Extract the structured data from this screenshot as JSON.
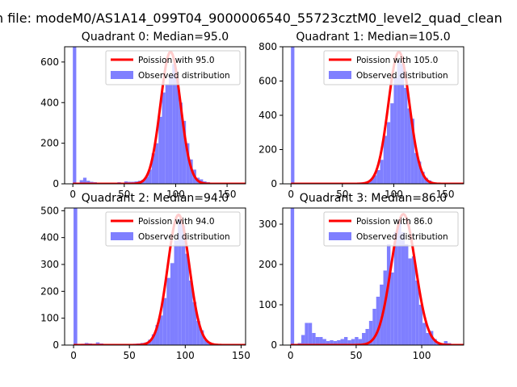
{
  "figure": {
    "suptitle": "n file: modeM0/AS1A14_099T04_9000006540_55723cztM0_level2_quad_clean"
  },
  "colors": {
    "bars": "#7f7fff",
    "poisson_line": "#ff0000",
    "axes": "#000000"
  },
  "chart_data": [
    {
      "type": "bar",
      "title": "Quadrant 0: Median=95.0",
      "legend": {
        "line": "Poission with 95.0",
        "bars": "Observed distribution",
        "placement": "top-right"
      },
      "xlim": [
        -8,
        168
      ],
      "ylim": [
        0,
        675
      ],
      "xticks": [
        0,
        50,
        100,
        150
      ],
      "yticks": [
        0,
        200,
        400,
        600
      ],
      "bin_width": 3.33,
      "poisson_mean": 95.0,
      "poisson_peak": 650,
      "bins_start": [
        0,
        3.33,
        6.67,
        10,
        13.33,
        16.67,
        20,
        23.33,
        26.67,
        30,
        33.33,
        36.67,
        40,
        43.33,
        46.67,
        50,
        53.33,
        56.67,
        60,
        63.33,
        66.67,
        70,
        73.33,
        76.67,
        80,
        83.33,
        86.67,
        90,
        93.33,
        96.67,
        100,
        103.33,
        106.67,
        110,
        113.33,
        116.67,
        120,
        123.33,
        126.67,
        130,
        133.33,
        136.67,
        140,
        143.33,
        146.67,
        150,
        153.33,
        156.67
      ],
      "counts": [
        2000,
        5,
        18,
        30,
        15,
        10,
        8,
        5,
        4,
        3,
        5,
        6,
        5,
        8,
        6,
        12,
        10,
        10,
        12,
        15,
        20,
        35,
        70,
        150,
        200,
        330,
        450,
        490,
        535,
        590,
        520,
        400,
        310,
        200,
        120,
        70,
        30,
        22,
        12,
        8,
        5,
        3,
        2,
        1,
        0,
        0,
        0,
        0
      ]
    },
    {
      "type": "bar",
      "title": "Quadrant 1: Median=105.0",
      "legend": {
        "line": "Poission with 105.0",
        "bars": "Observed distribution",
        "placement": "top-right"
      },
      "xlim": [
        -8,
        168
      ],
      "ylim": [
        0,
        800
      ],
      "xticks": [
        0,
        50,
        100,
        150
      ],
      "yticks": [
        0,
        200,
        400,
        600,
        800
      ],
      "bin_width": 3.33,
      "poisson_mean": 105.0,
      "poisson_peak": 770,
      "bins_start": [
        0,
        3.33,
        6.67,
        10,
        13.33,
        16.67,
        20,
        23.33,
        26.67,
        30,
        33.33,
        36.67,
        40,
        43.33,
        46.67,
        50,
        53.33,
        56.67,
        60,
        63.33,
        66.67,
        70,
        73.33,
        76.67,
        80,
        83.33,
        86.67,
        90,
        93.33,
        96.67,
        100,
        103.33,
        106.67,
        110,
        113.33,
        116.67,
        120,
        123.33,
        126.67,
        130,
        133.33,
        136.67,
        140,
        143.33,
        146.67,
        150,
        153.33,
        156.67
      ],
      "counts": [
        2000,
        0,
        2,
        2,
        1,
        1,
        1,
        0,
        1,
        0,
        1,
        1,
        1,
        2,
        2,
        3,
        4,
        4,
        5,
        6,
        8,
        10,
        15,
        25,
        50,
        80,
        140,
        280,
        360,
        470,
        620,
        720,
        700,
        560,
        440,
        380,
        180,
        130,
        70,
        35,
        20,
        10,
        5,
        3,
        2,
        1,
        0,
        0
      ]
    },
    {
      "type": "bar",
      "title": "Quadrant 2: Median=94.0",
      "legend": {
        "line": "Poission with 94.0",
        "bars": "Observed distribution",
        "placement": "top-right"
      },
      "xlim": [
        -8,
        154
      ],
      "ylim": [
        0,
        510
      ],
      "xticks": [
        0,
        50,
        100,
        150
      ],
      "yticks": [
        0,
        100,
        200,
        300,
        400,
        500
      ],
      "bin_width": 3.33,
      "poisson_mean": 94.0,
      "poisson_peak": 485,
      "bins_start": [
        0,
        3.33,
        6.67,
        10,
        13.33,
        16.67,
        20,
        23.33,
        26.67,
        30,
        33.33,
        36.67,
        40,
        43.33,
        46.67,
        50,
        53.33,
        56.67,
        60,
        63.33,
        66.67,
        70,
        73.33,
        76.67,
        80,
        83.33,
        86.67,
        90,
        93.33,
        96.67,
        100,
        103.33,
        106.67,
        110,
        113.33,
        116.67,
        120,
        123.33,
        126.67,
        130,
        133.33,
        136.67,
        140,
        143.33
      ],
      "counts": [
        2000,
        3,
        5,
        8,
        6,
        5,
        10,
        6,
        4,
        3,
        3,
        2,
        2,
        3,
        2,
        4,
        5,
        6,
        8,
        10,
        20,
        40,
        75,
        110,
        175,
        250,
        305,
        390,
        470,
        445,
        340,
        240,
        160,
        90,
        55,
        20,
        10,
        5,
        3,
        2,
        1,
        0,
        0,
        0
      ]
    },
    {
      "type": "bar",
      "title": "Quadrant 3: Median=86.0",
      "legend": {
        "line": "Poission with 86.0",
        "bars": "Observed distribution",
        "placement": "top-right"
      },
      "xlim": [
        -6,
        132
      ],
      "ylim": [
        0,
        340
      ],
      "xticks": [
        0,
        50,
        100
      ],
      "yticks": [
        0,
        100,
        200,
        300
      ],
      "bin_width": 2.72,
      "poisson_mean": 86.0,
      "poisson_peak": 325,
      "bins_start": [
        0,
        2.72,
        5.44,
        8.16,
        10.88,
        13.6,
        16.32,
        19.04,
        21.76,
        24.48,
        27.2,
        29.92,
        32.64,
        35.36,
        38.08,
        40.8,
        43.52,
        46.24,
        48.96,
        51.68,
        54.4,
        57.12,
        59.84,
        62.56,
        65.28,
        68,
        70.72,
        73.44,
        76.16,
        78.88,
        81.6,
        84.32,
        87.04,
        89.76,
        92.48,
        95.2,
        97.92,
        100.64,
        103.36,
        106.08,
        108.8,
        111.52,
        114.24,
        116.96,
        119.68
      ],
      "counts": [
        2000,
        2,
        5,
        25,
        55,
        55,
        30,
        20,
        20,
        15,
        10,
        12,
        10,
        12,
        15,
        20,
        12,
        15,
        20,
        15,
        30,
        40,
        60,
        90,
        120,
        150,
        185,
        250,
        180,
        280,
        310,
        280,
        250,
        215,
        220,
        160,
        100,
        55,
        30,
        35,
        15,
        5,
        3,
        10,
        5
      ]
    }
  ]
}
